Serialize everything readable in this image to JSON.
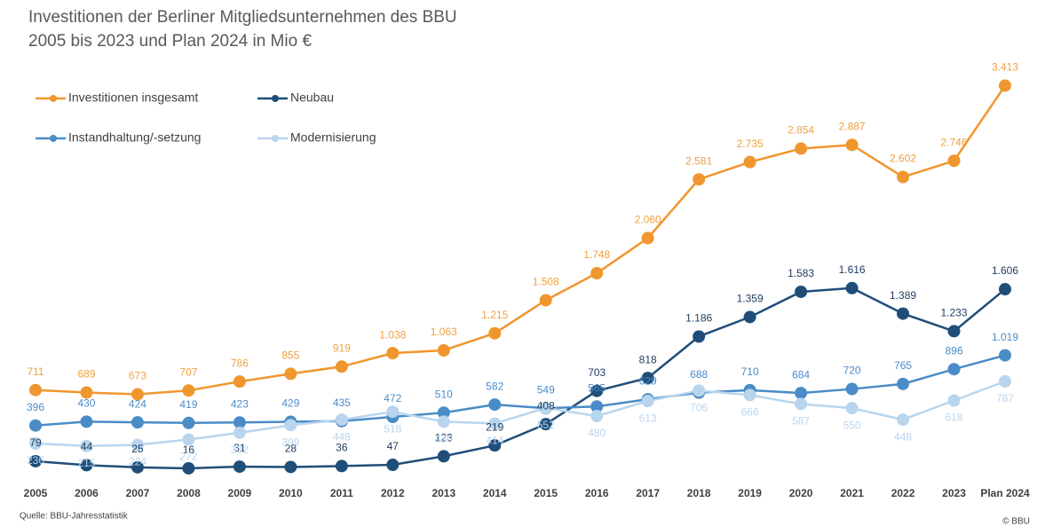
{
  "chart_data": {
    "type": "line",
    "title": "Investitionen der Berliner Mitgliedsunternehmen des BBU",
    "subtitle": "2005 bis 2023 und Plan 2024 in Mio €",
    "source": "Quelle: BBU-Jahresstatistik",
    "copyright": "© BBU",
    "categories": [
      "2005",
      "2006",
      "2007",
      "2008",
      "2009",
      "2010",
      "2011",
      "2012",
      "2013",
      "2014",
      "2015",
      "2016",
      "2017",
      "2018",
      "2019",
      "2020",
      "2021",
      "2022",
      "2023",
      "Plan 2024"
    ],
    "series": [
      {
        "name": "Investitionen insgesamt",
        "color": "#f0962e",
        "values": [
          711,
          689,
          673,
          707,
          786,
          855,
          919,
          1038,
          1063,
          1215,
          1508,
          1748,
          2060,
          2581,
          2735,
          2854,
          2887,
          2602,
          2746,
          3413
        ],
        "value_labels": [
          "711",
          "689",
          "673",
          "707",
          "786",
          "855",
          "919",
          "1.038",
          "1.063",
          "1.215",
          "1.508",
          "1.748",
          "2.060",
          "2.581",
          "2.735",
          "2.854",
          "2.887",
          "2.602",
          "2.746",
          "3.413"
        ]
      },
      {
        "name": "Neubau",
        "color": "#1f4e79",
        "values": [
          79,
          44,
          25,
          16,
          31,
          28,
          36,
          47,
          123,
          219,
          408,
          703,
          818,
          1186,
          1359,
          1583,
          1616,
          1389,
          1233,
          1606
        ],
        "value_labels": [
          "79",
          "44",
          "25",
          "16",
          "31",
          "28",
          "36",
          "47",
          "123",
          "219",
          "408",
          "703",
          "818",
          "1.186",
          "1.359",
          "1.583",
          "1.616",
          "1.389",
          "1.233",
          "1.606"
        ]
      },
      {
        "name": "Instandhaltung/-setzung",
        "color": "#4a8cc7",
        "values": [
          396,
          430,
          424,
          419,
          423,
          429,
          435,
          472,
          510,
          582,
          549,
          565,
          629,
          688,
          710,
          684,
          720,
          765,
          896,
          1019
        ],
        "value_labels": [
          "396",
          "430",
          "424",
          "419",
          "423",
          "429",
          "435",
          "472",
          "510",
          "582",
          "549",
          "565",
          "629",
          "688",
          "710",
          "684",
          "720",
          "765",
          "896",
          "1.019"
        ]
      },
      {
        "name": "Modernisierung",
        "color": "#b9d5ee",
        "values": [
          236,
          215,
          224,
          272,
          332,
          399,
          448,
          518,
          430,
          414,
          552,
          480,
          613,
          706,
          666,
          587,
          550,
          448,
          618,
          787
        ],
        "value_labels": [
          "236",
          "215",
          "224",
          "272",
          "332",
          "399",
          "448",
          "518",
          "430",
          "414",
          "552",
          "480",
          "613",
          "706",
          "666",
          "587",
          "550",
          "448",
          "618",
          "787"
        ]
      }
    ]
  }
}
